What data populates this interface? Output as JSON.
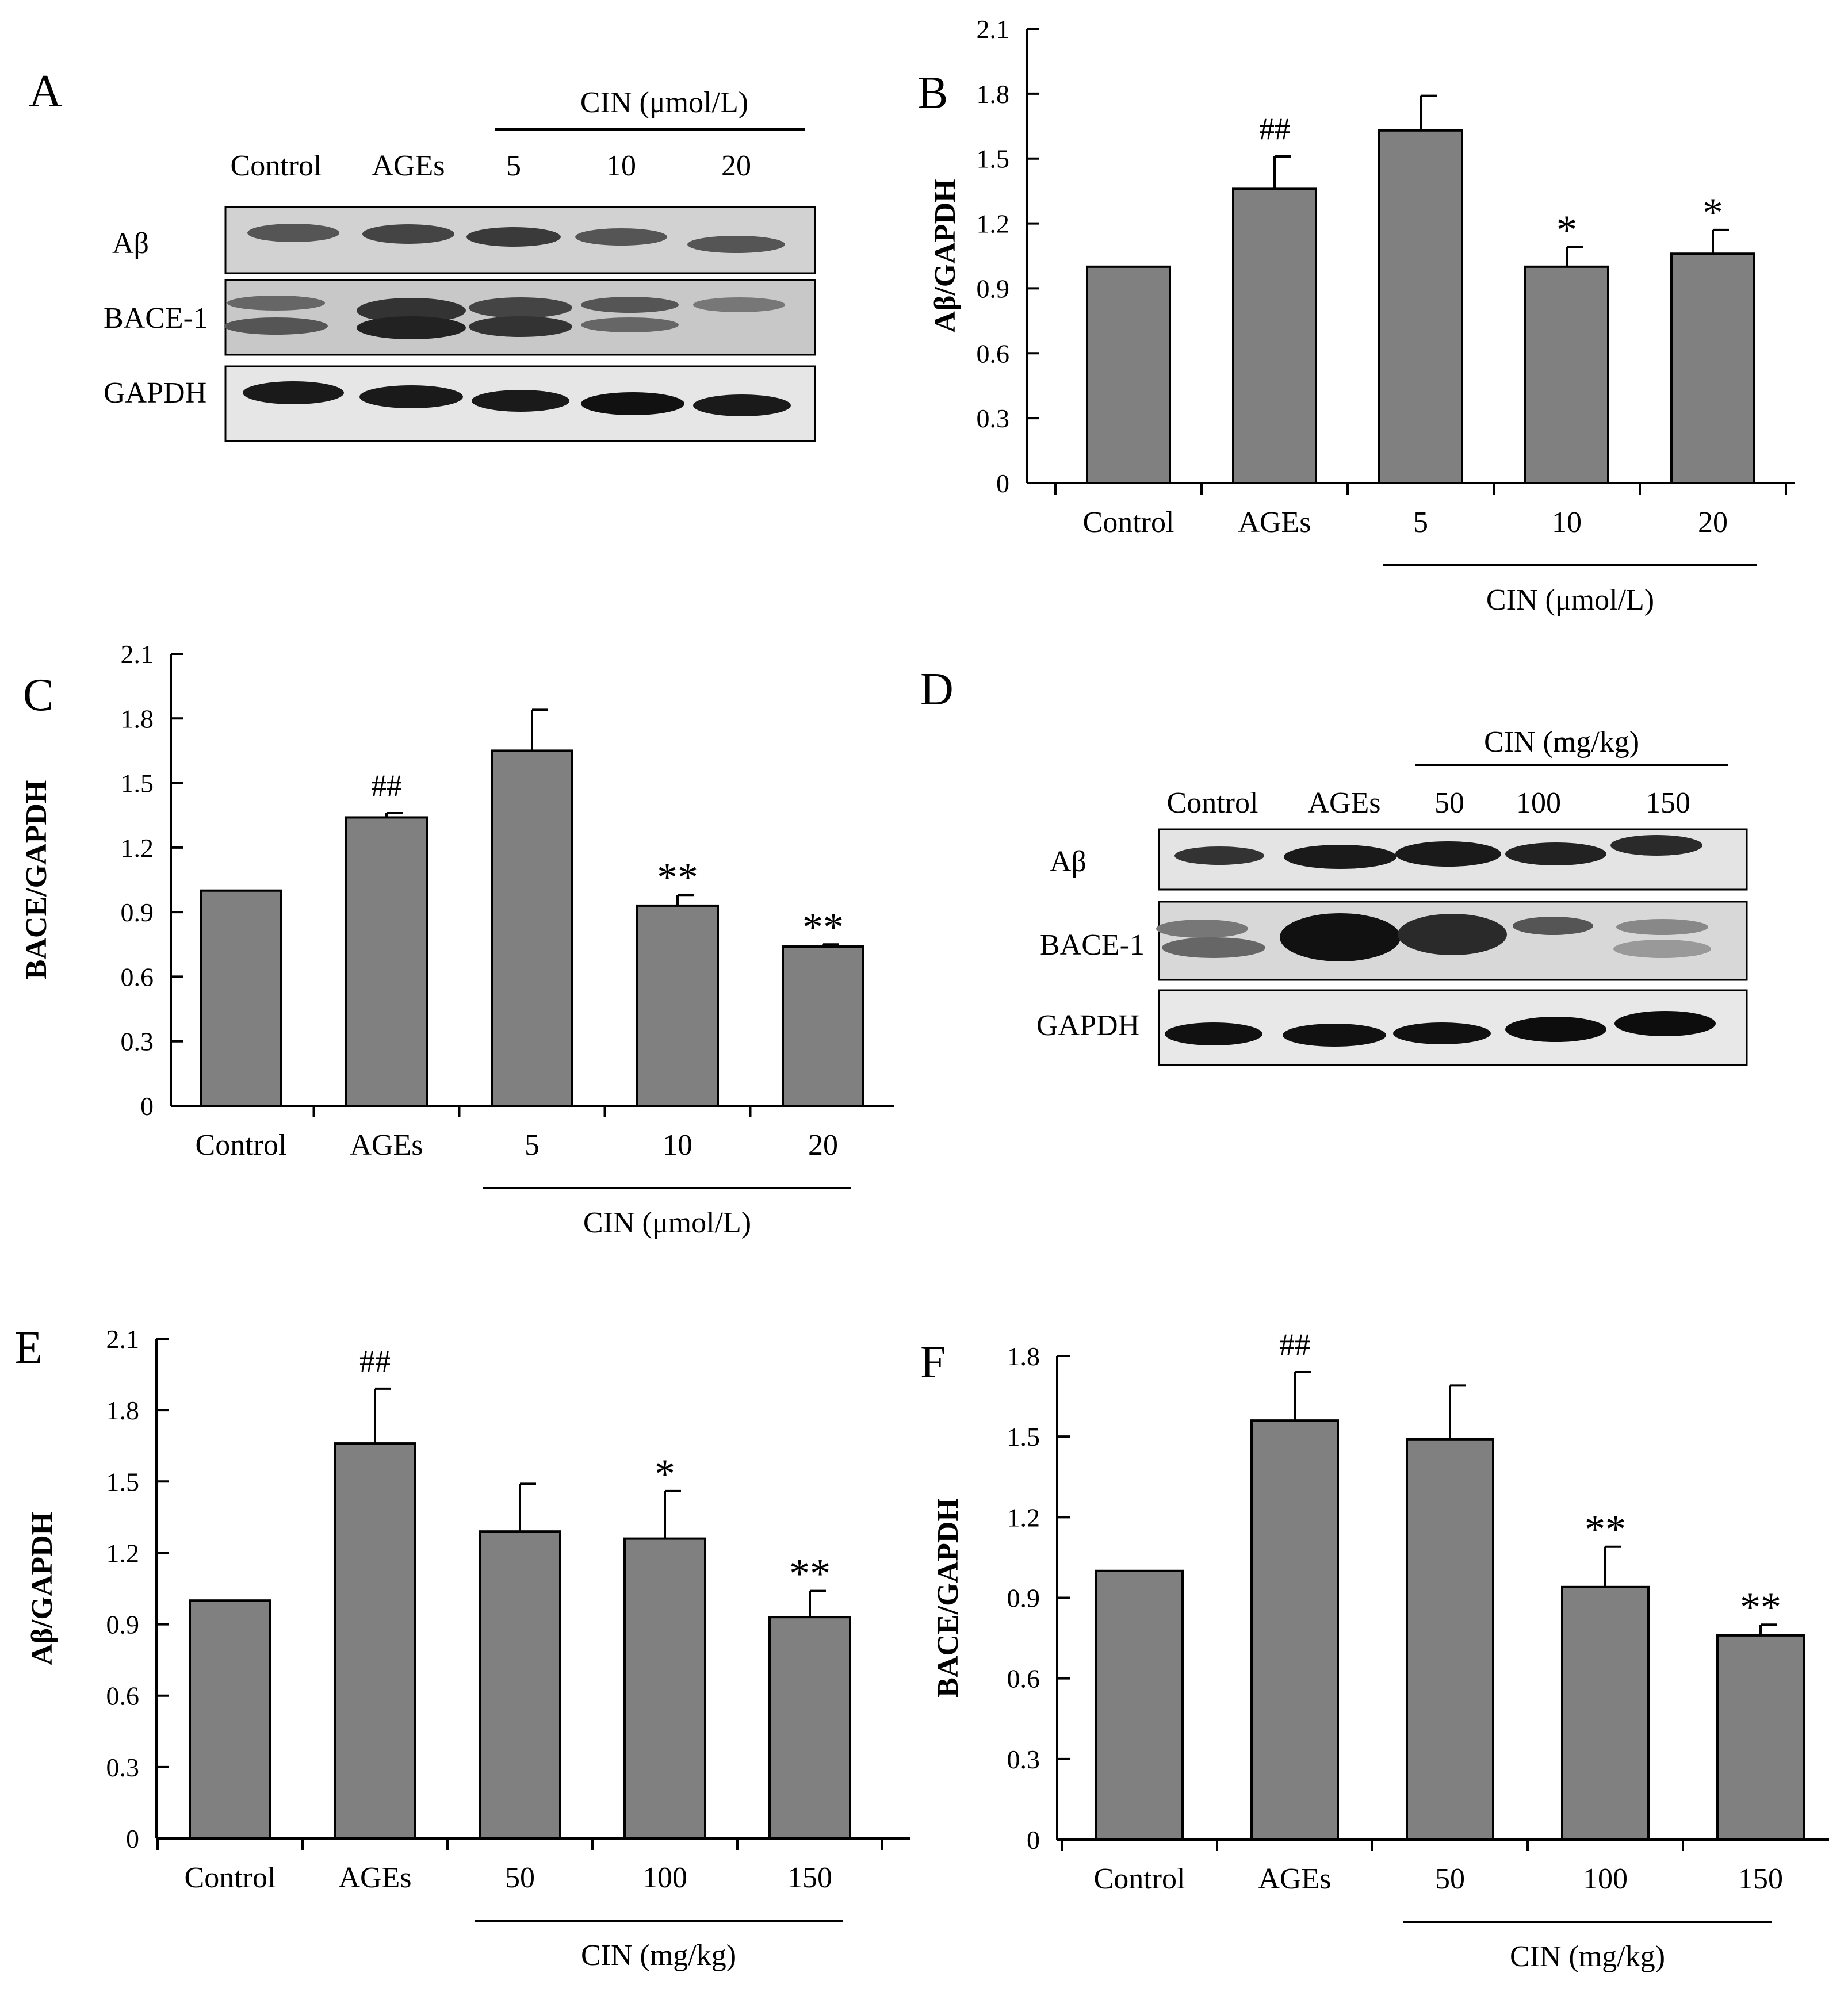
{
  "panels": {
    "A": "A",
    "B": "B",
    "C": "C",
    "D": "D",
    "E": "E",
    "F": "F"
  },
  "blots": [
    {
      "panel": "A",
      "lanes": [
        "Control",
        "AGEs",
        "5",
        "10",
        "20"
      ],
      "group_label": "CIN (μmol/L)",
      "rows": [
        "Aβ",
        "BACE-1",
        "GAPDH"
      ]
    },
    {
      "panel": "D",
      "lanes": [
        "Control",
        "AGEs",
        "50",
        "100",
        "150"
      ],
      "group_label": "CIN (mg/kg)",
      "rows": [
        "Aβ",
        "BACE-1",
        "GAPDH"
      ]
    }
  ],
  "chart_data": [
    {
      "panel": "B",
      "type": "bar",
      "categories": [
        "Control",
        "AGEs",
        "5",
        "10",
        "20"
      ],
      "values": [
        1.0,
        1.36,
        1.63,
        1.0,
        1.06
      ],
      "errors": [
        0.0,
        0.15,
        0.16,
        0.09,
        0.11
      ],
      "annotations": [
        "",
        "##",
        "",
        "*",
        "*"
      ],
      "ylabel": "Aβ/GAPDH",
      "xgroup_label": "CIN (μmol/L)",
      "yticks": [
        "0",
        "0.3",
        "0.6",
        "0.9",
        "1.2",
        "1.5",
        "1.8",
        "2.1"
      ],
      "ylim": [
        0,
        2.1
      ],
      "bar_color": "#808080"
    },
    {
      "panel": "C",
      "type": "bar",
      "categories": [
        "Control",
        "AGEs",
        "5",
        "10",
        "20"
      ],
      "values": [
        1.0,
        1.34,
        1.65,
        0.93,
        0.74
      ],
      "errors": [
        0.0,
        0.02,
        0.19,
        0.05,
        0.01
      ],
      "annotations": [
        "",
        "##",
        "",
        "**",
        "**"
      ],
      "ylabel": "BACE/GAPDH",
      "xgroup_label": "CIN (μmol/L)",
      "yticks": [
        "0",
        "0.3",
        "0.6",
        "0.9",
        "1.2",
        "1.5",
        "1.8",
        "2.1"
      ],
      "ylim": [
        0,
        2.1
      ],
      "bar_color": "#808080"
    },
    {
      "panel": "E",
      "type": "bar",
      "categories": [
        "Control",
        "AGEs",
        "50",
        "100",
        "150"
      ],
      "values": [
        1.0,
        1.66,
        1.29,
        1.26,
        0.93
      ],
      "errors": [
        0.0,
        0.23,
        0.2,
        0.2,
        0.11
      ],
      "annotations": [
        "",
        "##",
        "",
        "*",
        "**"
      ],
      "ylabel": "Aβ/GAPDH",
      "xgroup_label": "CIN (mg/kg)",
      "yticks": [
        "0",
        "0.3",
        "0.6",
        "0.9",
        "1.2",
        "1.5",
        "1.8",
        "2.1"
      ],
      "ylim": [
        0,
        2.1
      ],
      "bar_color": "#808080"
    },
    {
      "panel": "F",
      "type": "bar",
      "categories": [
        "Control",
        "AGEs",
        "50",
        "100",
        "150"
      ],
      "values": [
        1.0,
        1.56,
        1.49,
        0.94,
        0.76
      ],
      "errors": [
        0.0,
        0.18,
        0.2,
        0.15,
        0.04
      ],
      "annotations": [
        "",
        "##",
        "",
        "**",
        "**"
      ],
      "ylabel": "BACE/GAPDH",
      "xgroup_label": "CIN (mg/kg)",
      "yticks": [
        "0",
        "0.3",
        "0.6",
        "0.9",
        "1.2",
        "1.5",
        "1.8"
      ],
      "ylim": [
        0,
        1.8
      ],
      "bar_color": "#808080"
    }
  ]
}
